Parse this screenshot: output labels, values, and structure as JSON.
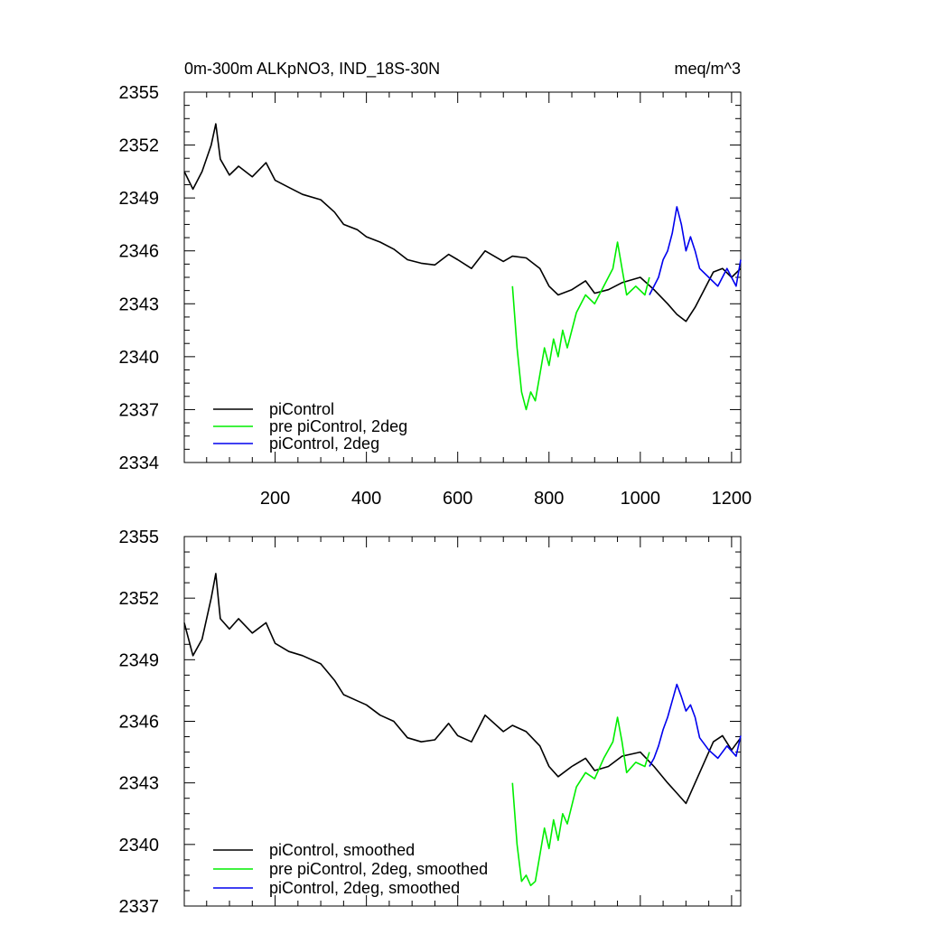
{
  "figure": {
    "title_left": "0m-300m ALKpNO3, IND_18S-30N",
    "title_right": "meq/m^3"
  },
  "chart_data": [
    {
      "type": "line",
      "panel": "top",
      "title": "0m-300m ALKpNO3, IND_18S-30N",
      "units": "meq/m^3",
      "xlabel": "",
      "ylabel": "",
      "xlim": [
        1,
        1220
      ],
      "ylim": [
        2334,
        2355
      ],
      "xticks": [
        200,
        400,
        600,
        800,
        1000,
        1200
      ],
      "yticks": [
        2334,
        2337,
        2340,
        2343,
        2346,
        2349,
        2352,
        2355
      ],
      "legend_position": "bottom-left",
      "series": [
        {
          "name": "piControl",
          "color": "#000000",
          "x": [
            1,
            20,
            40,
            60,
            70,
            80,
            100,
            120,
            150,
            180,
            200,
            230,
            260,
            300,
            330,
            350,
            380,
            400,
            430,
            460,
            490,
            520,
            550,
            580,
            600,
            630,
            660,
            700,
            720,
            750,
            780,
            800,
            820,
            850,
            880,
            900,
            930,
            960,
            1000,
            1030,
            1060,
            1080,
            1100,
            1120,
            1140,
            1160,
            1180,
            1200,
            1220
          ],
          "y": [
            2350.5,
            2349.5,
            2350.5,
            2352.0,
            2353.2,
            2351.2,
            2350.3,
            2350.8,
            2350.2,
            2351.0,
            2350.0,
            2349.6,
            2349.2,
            2348.9,
            2348.2,
            2347.5,
            2347.2,
            2346.8,
            2346.5,
            2346.1,
            2345.5,
            2345.3,
            2345.2,
            2345.8,
            2345.5,
            2345.0,
            2346.0,
            2345.4,
            2345.7,
            2345.6,
            2345.0,
            2344.0,
            2343.5,
            2343.8,
            2344.3,
            2343.6,
            2343.8,
            2344.2,
            2344.5,
            2343.8,
            2343.0,
            2342.4,
            2342.0,
            2342.8,
            2343.8,
            2344.8,
            2345.0,
            2344.5,
            2345.0
          ]
        },
        {
          "name": "pre piControl, 2deg",
          "color": "#00ee00",
          "x": [
            720,
            730,
            740,
            750,
            760,
            770,
            780,
            790,
            800,
            810,
            820,
            830,
            840,
            860,
            880,
            900,
            920,
            940,
            950,
            960,
            970,
            990,
            1010,
            1020
          ],
          "y": [
            2344.0,
            2340.5,
            2338.0,
            2337.0,
            2338.0,
            2337.5,
            2339.0,
            2340.5,
            2339.5,
            2341.0,
            2340.0,
            2341.5,
            2340.5,
            2342.5,
            2343.5,
            2343.0,
            2344.0,
            2345.0,
            2346.5,
            2345.0,
            2343.5,
            2344.0,
            2343.5,
            2344.5
          ]
        },
        {
          "name": "piControl, 2deg",
          "color": "#0000ee",
          "x": [
            1020,
            1030,
            1040,
            1050,
            1060,
            1070,
            1080,
            1090,
            1100,
            1110,
            1120,
            1130,
            1150,
            1170,
            1190,
            1210,
            1220
          ],
          "y": [
            2343.5,
            2344.0,
            2344.5,
            2345.5,
            2346.0,
            2347.0,
            2348.5,
            2347.5,
            2346.0,
            2346.8,
            2346.0,
            2345.0,
            2344.5,
            2344.0,
            2345.0,
            2344.0,
            2345.5
          ]
        }
      ]
    },
    {
      "type": "line",
      "panel": "bottom",
      "title": "",
      "xlabel": "",
      "ylabel": "",
      "xlim": [
        1,
        1220
      ],
      "ylim": [
        2337,
        2355
      ],
      "xticks": [
        200,
        400,
        600,
        800,
        1000,
        1200
      ],
      "yticks": [
        2337,
        2340,
        2343,
        2346,
        2349,
        2352,
        2355
      ],
      "legend_position": "bottom-left",
      "series": [
        {
          "name": "piControl, smoothed",
          "color": "#000000",
          "x": [
            1,
            20,
            40,
            60,
            70,
            80,
            100,
            120,
            150,
            180,
            200,
            230,
            260,
            300,
            330,
            350,
            380,
            400,
            430,
            460,
            490,
            520,
            550,
            580,
            600,
            630,
            660,
            700,
            720,
            750,
            780,
            800,
            820,
            850,
            880,
            900,
            930,
            960,
            1000,
            1030,
            1060,
            1080,
            1100,
            1120,
            1140,
            1160,
            1180,
            1200,
            1220
          ],
          "y": [
            2350.8,
            2349.2,
            2350.0,
            2352.0,
            2353.2,
            2351.0,
            2350.5,
            2351.0,
            2350.3,
            2350.8,
            2349.8,
            2349.4,
            2349.2,
            2348.8,
            2348.0,
            2347.3,
            2347.0,
            2346.8,
            2346.3,
            2346.0,
            2345.2,
            2345.0,
            2345.1,
            2345.9,
            2345.3,
            2345.0,
            2346.3,
            2345.5,
            2345.8,
            2345.5,
            2344.8,
            2343.8,
            2343.3,
            2343.8,
            2344.2,
            2343.6,
            2343.8,
            2344.3,
            2344.5,
            2343.8,
            2343.0,
            2342.5,
            2342.0,
            2343.0,
            2344.0,
            2345.0,
            2345.3,
            2344.6,
            2345.2
          ]
        },
        {
          "name": "pre piControl, 2deg, smoothed",
          "color": "#00ee00",
          "x": [
            720,
            730,
            740,
            750,
            760,
            770,
            780,
            790,
            800,
            810,
            820,
            830,
            840,
            860,
            880,
            900,
            920,
            940,
            950,
            960,
            970,
            990,
            1010,
            1020
          ],
          "y": [
            2343.0,
            2340.0,
            2338.2,
            2338.5,
            2338.0,
            2338.2,
            2339.5,
            2340.8,
            2339.8,
            2341.2,
            2340.2,
            2341.5,
            2341.0,
            2342.8,
            2343.5,
            2343.2,
            2344.2,
            2345.0,
            2346.2,
            2345.0,
            2343.5,
            2344.0,
            2343.8,
            2344.5
          ]
        },
        {
          "name": "piControl, 2deg, smoothed",
          "color": "#0000ee",
          "x": [
            1020,
            1030,
            1040,
            1050,
            1060,
            1070,
            1080,
            1090,
            1100,
            1110,
            1120,
            1130,
            1150,
            1170,
            1190,
            1210,
            1220
          ],
          "y": [
            2343.8,
            2344.2,
            2344.8,
            2345.6,
            2346.2,
            2347.0,
            2347.8,
            2347.2,
            2346.5,
            2346.8,
            2346.2,
            2345.2,
            2344.6,
            2344.2,
            2344.8,
            2344.3,
            2345.3
          ]
        }
      ]
    }
  ]
}
